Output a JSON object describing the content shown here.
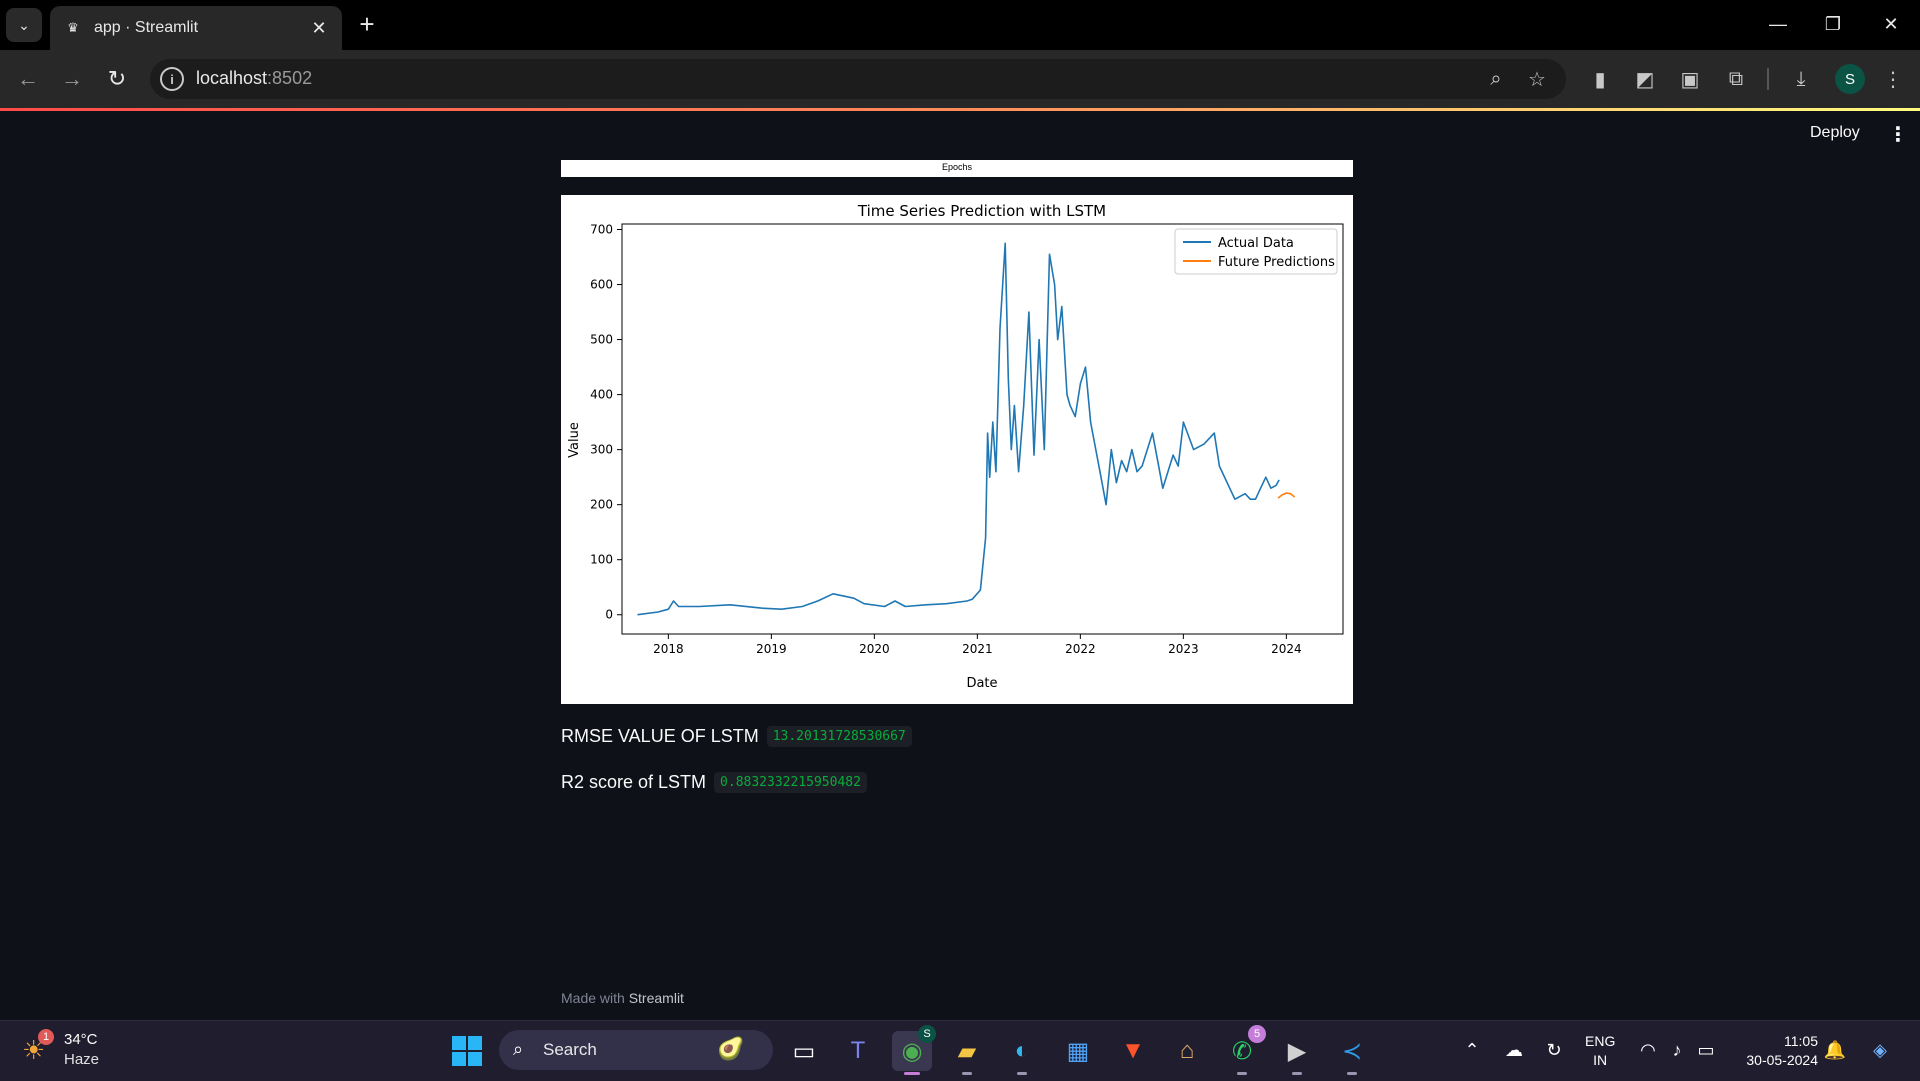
{
  "browser": {
    "tab_title": "app · Streamlit",
    "url_host": "localhost",
    "url_port": ":8502",
    "icons": [
      "tab-search-icon",
      "streamlit-crown-icon",
      "close-icon",
      "plus-icon",
      "minimize-icon",
      "restore-icon",
      "close-window-icon",
      "back-arrow-icon",
      "forward-arrow-icon",
      "reload-icon",
      "site-info-icon",
      "zoom-icon",
      "star-icon",
      "extension-icons",
      "puzzle-icon",
      "download-icon",
      "more-vert-icon"
    ],
    "profile_initial": "S"
  },
  "app": {
    "deploy_label": "Deploy",
    "prev_figure_xlabel": "Epochs",
    "rmse_label": "RMSE VALUE OF LSTM",
    "rmse_value": "13.20131728530667",
    "r2_label": "R2 score of LSTM",
    "r2_value": "0.8832332215950482",
    "footer_prefix": "Made with",
    "footer_brand": "Streamlit"
  },
  "chart_data": {
    "type": "line",
    "title": "Time Series Prediction with LSTM",
    "xlabel": "Date",
    "ylabel": "Value",
    "xlim": [
      2017.55,
      2024.55
    ],
    "ylim": [
      -35,
      710
    ],
    "x_ticks": [
      "2018",
      "2019",
      "2020",
      "2021",
      "2022",
      "2023",
      "2024"
    ],
    "y_ticks": [
      0,
      100,
      200,
      300,
      400,
      500,
      600,
      700
    ],
    "legend": "top-right",
    "series": [
      {
        "name": "Actual Data",
        "color": "#1f77b4",
        "x": [
          2017.7,
          2017.9,
          2018.0,
          2018.05,
          2018.1,
          2018.3,
          2018.6,
          2018.9,
          2019.1,
          2019.3,
          2019.45,
          2019.6,
          2019.8,
          2019.9,
          2020.1,
          2020.2,
          2020.3,
          2020.5,
          2020.7,
          2020.9,
          2020.95,
          2021.03,
          2021.08,
          2021.1,
          2021.12,
          2021.15,
          2021.18,
          2021.22,
          2021.27,
          2021.3,
          2021.33,
          2021.36,
          2021.4,
          2021.45,
          2021.5,
          2021.55,
          2021.6,
          2021.65,
          2021.7,
          2021.75,
          2021.78,
          2021.82,
          2021.87,
          2021.9,
          2021.95,
          2022.0,
          2022.05,
          2022.1,
          2022.15,
          2022.2,
          2022.25,
          2022.3,
          2022.35,
          2022.4,
          2022.45,
          2022.5,
          2022.55,
          2022.6,
          2022.7,
          2022.8,
          2022.9,
          2022.95,
          2023.0,
          2023.1,
          2023.2,
          2023.3,
          2023.35,
          2023.45,
          2023.5,
          2023.6,
          2023.65,
          2023.7,
          2023.75,
          2023.8,
          2023.85,
          2023.9,
          2023.93
        ],
        "y": [
          0,
          5,
          10,
          25,
          15,
          15,
          18,
          12,
          10,
          15,
          25,
          38,
          30,
          20,
          15,
          25,
          15,
          18,
          20,
          25,
          28,
          45,
          140,
          330,
          250,
          350,
          260,
          520,
          675,
          430,
          300,
          380,
          260,
          380,
          550,
          290,
          500,
          300,
          655,
          600,
          500,
          560,
          400,
          380,
          360,
          420,
          450,
          350,
          300,
          250,
          200,
          300,
          240,
          280,
          260,
          300,
          260,
          270,
          330,
          230,
          290,
          270,
          350,
          300,
          310,
          330,
          270,
          230,
          210,
          220,
          210,
          210,
          230,
          250,
          230,
          235,
          245
        ]
      },
      {
        "name": "Future Predictions",
        "color": "#ff7f0e",
        "x": [
          2023.92,
          2023.96,
          2024.0,
          2024.04,
          2024.08
        ],
        "y": [
          212,
          218,
          221,
          220,
          214
        ]
      }
    ]
  },
  "taskbar": {
    "weather_badge": "1",
    "weather_temp": "34°C",
    "weather_desc": "Haze",
    "search_label": "Search",
    "chrome_badge": "S",
    "whatsapp_badge": "5",
    "lang_line1": "ENG",
    "lang_line2": "IN",
    "time": "11:05",
    "date": "30-05-2024"
  }
}
